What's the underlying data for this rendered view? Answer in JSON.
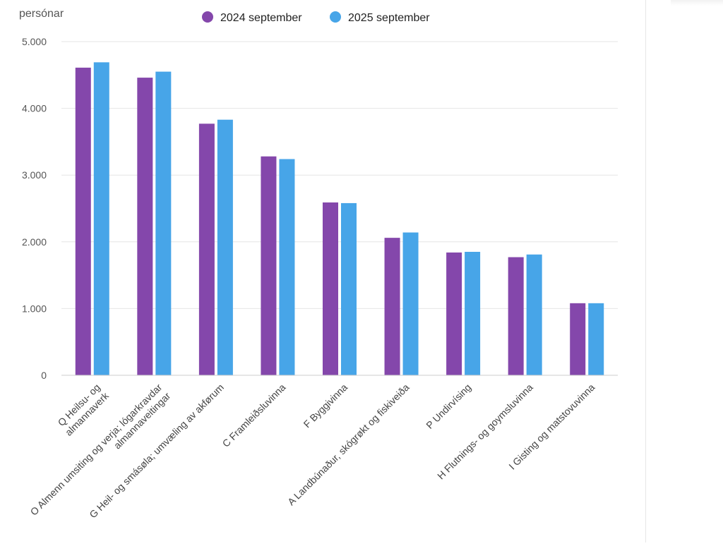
{
  "chart_data": {
    "type": "bar",
    "ylabel": "persónar",
    "ylim": [
      0,
      5000
    ],
    "yticks": [
      0,
      1000,
      2000,
      3000,
      4000,
      5000
    ],
    "ytick_labels": [
      "0",
      "1.000",
      "2.000",
      "3.000",
      "4.000",
      "5.000"
    ],
    "grid": true,
    "legend_position": "top",
    "categories": [
      [
        "Q Heilsu- og",
        "almannaverk"
      ],
      [
        "O Almenn umsiting og verja; lógarkravdar",
        "almannaveitingar"
      ],
      [
        "G Heil- og smásøla; umvæling av akførum"
      ],
      [
        "C Framleiðsluvinna"
      ],
      [
        "F Byggivinna"
      ],
      [
        "A Landbúnaður, skógrøkt og fiskiveiða"
      ],
      [
        "P Undirvísing"
      ],
      [
        "H Flutnings- og goymsluvinna"
      ],
      [
        "I Gisting og matstovuvinna"
      ]
    ],
    "series": [
      {
        "name": "2024 september",
        "color": "#8447ab",
        "values": [
          4610,
          4460,
          3770,
          3280,
          2590,
          2060,
          1840,
          1770,
          1080
        ]
      },
      {
        "name": "2025 september",
        "color": "#47a5e8",
        "values": [
          4690,
          4550,
          3830,
          3240,
          2580,
          2140,
          1850,
          1810,
          1080
        ]
      }
    ]
  }
}
